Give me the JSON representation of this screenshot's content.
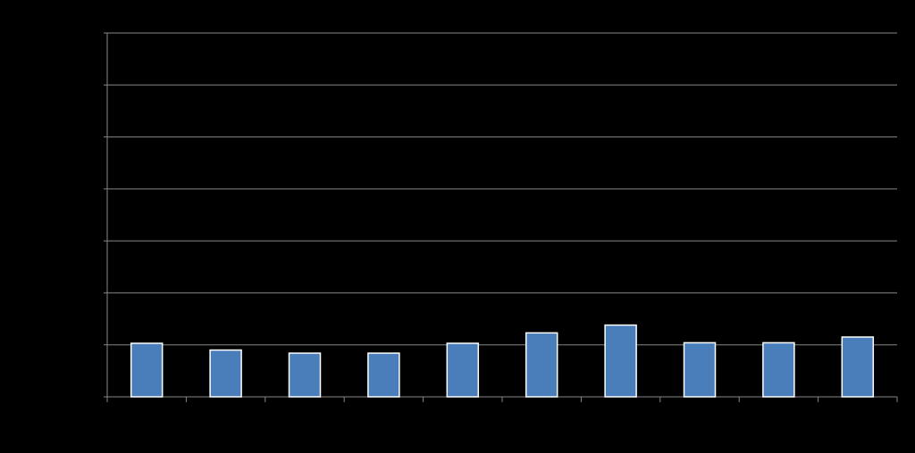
{
  "chart_data": {
    "type": "bar",
    "categories": [
      "",
      "",
      "",
      "",
      "",
      "",
      "",
      "",
      "",
      ""
    ],
    "values": [
      1.03,
      0.9,
      0.84,
      0.84,
      1.03,
      1.23,
      1.38,
      1.04,
      1.04,
      1.15
    ],
    "ylim": [
      0,
      7
    ],
    "y_gridlines": [
      1,
      2,
      3,
      4,
      5,
      6,
      7
    ],
    "grid": true,
    "legend": "none",
    "colors": {
      "background": "#000000",
      "bar_fill": "#4a7ebb",
      "bar_stroke": "#ffffff",
      "grid": "#868686",
      "axis": "#868686"
    }
  }
}
